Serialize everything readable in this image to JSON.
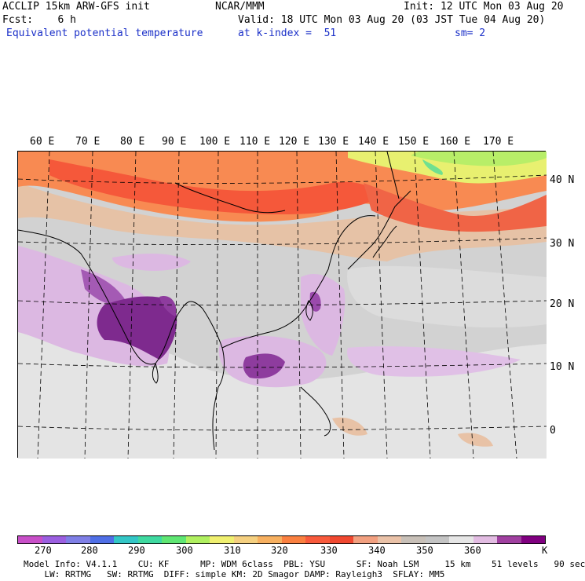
{
  "header": {
    "line1_left": "ACCLIP 15km ARW-GFS init",
    "line1_center": "NCAR/MMM",
    "line1_right": "Init: 12 UTC Mon 03 Aug 20",
    "line2_left": "Fcst:    6 h",
    "line2_right": "Valid: 18 UTC Mon 03 Aug 20 (03 JST Tue 04 Aug 20)",
    "line3_left": "Equivalent potential temperature",
    "line3_center": "at k-index =  51",
    "line3_right": "sm= 2"
  },
  "map": {
    "lon_labels": [
      "60 E",
      "70 E",
      "80 E",
      "90 E",
      "100 E",
      "110 E",
      "120 E",
      "130 E",
      "140 E",
      "150 E",
      "160 E",
      "170 E"
    ],
    "lat_labels": [
      "40 N",
      "30 N",
      "20 N",
      "10 N",
      "0"
    ]
  },
  "colorbar": {
    "colors": [
      "#c84fc8",
      "#9b5fe0",
      "#7f7fe6",
      "#4f6fe6",
      "#33c6c6",
      "#3fd9a0",
      "#5fe673",
      "#b0f060",
      "#f0f070",
      "#f5d080",
      "#f7b060",
      "#fa8040",
      "#f85a3c",
      "#f04830",
      "#f2a080",
      "#eac2a8",
      "#c8c0b8",
      "#c4c4c4",
      "#e6e6e6",
      "#e2bce2",
      "#a040a0",
      "#800080"
    ],
    "tick_labels": [
      "270",
      "280",
      "290",
      "300",
      "310",
      "320",
      "330",
      "340",
      "350",
      "360"
    ],
    "unit": "K"
  },
  "footer": {
    "line1": "Model Info: V4.1.1    CU: KF      MP: WDM 6class  PBL: YSU      SF: Noah LSM     15 km    51 levels   90 sec",
    "line2": "    LW: RRTMG   SW: RRTMG  DIFF: simple KM: 2D Smagor DAMP: Rayleigh3  SFLAY: MM5"
  }
}
